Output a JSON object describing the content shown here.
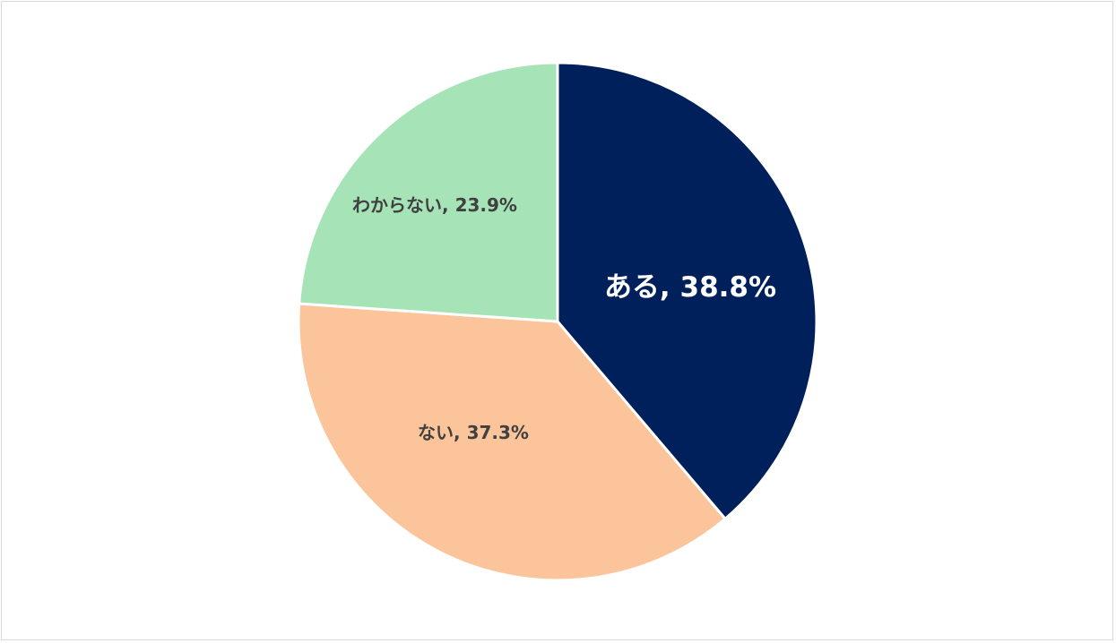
{
  "chart_data": {
    "type": "pie",
    "title": "",
    "slices": [
      {
        "category": "ある",
        "value": 38.8,
        "label": "ある, 38.8%",
        "color": "#00205b",
        "label_color": "#ffffff"
      },
      {
        "category": "ない",
        "value": 37.3,
        "label": "ない, 37.3%",
        "color": "#fcc49a",
        "label_color": "#404040"
      },
      {
        "category": "わからない",
        "value": 23.9,
        "label": "わからない, 23.9%",
        "color": "#a6e3b7",
        "label_color": "#404040"
      }
    ],
    "start_angle": "12 o'clock",
    "direction": "clockwise",
    "legend": "none"
  }
}
